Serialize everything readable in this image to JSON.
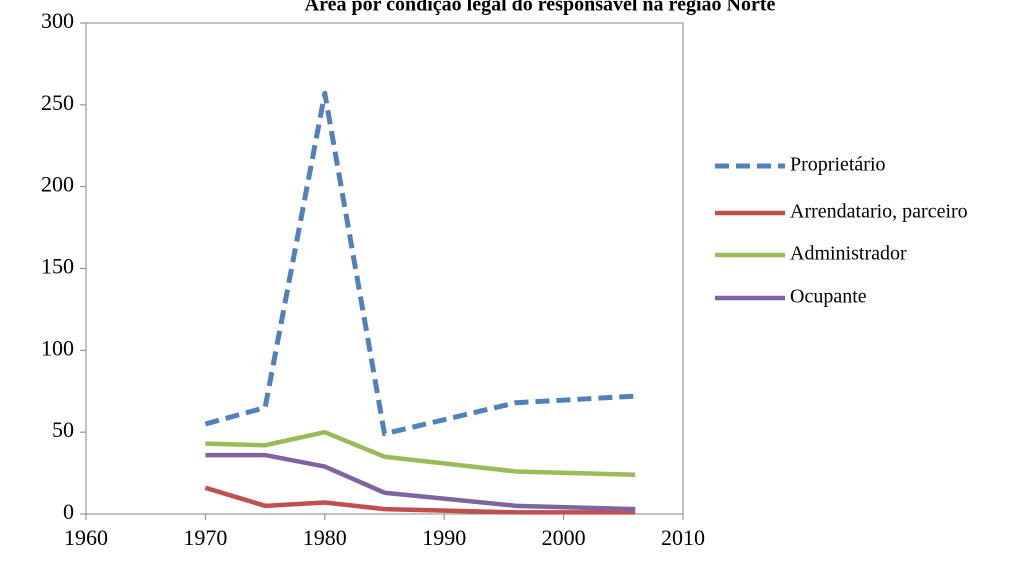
{
  "chart_data": {
    "type": "line",
    "title": "Área por condição legal do responsável na região Norte",
    "x": [
      1970,
      1975,
      1980,
      1985,
      1996,
      2006
    ],
    "series": [
      {
        "name": "Proprietário",
        "color": "#4f81bd",
        "dashed": true,
        "values": [
          55,
          65,
          257,
          49,
          68,
          72
        ]
      },
      {
        "name": "Arrendatario, parceiro",
        "color": "#c0504d",
        "dashed": false,
        "values": [
          16,
          5,
          7,
          3,
          1,
          1
        ]
      },
      {
        "name": "Administrador",
        "color": "#9bbb59",
        "dashed": false,
        "values": [
          43,
          42,
          50,
          35,
          26,
          24
        ]
      },
      {
        "name": "Ocupante",
        "color": "#8064a2",
        "dashed": false,
        "values": [
          36,
          36,
          29,
          13,
          5,
          3
        ]
      }
    ],
    "xlim": [
      1960,
      2010
    ],
    "xticks": [
      1960,
      1970,
      1980,
      1990,
      2000,
      2010
    ],
    "ylim": [
      0,
      300
    ],
    "yticks": [
      0,
      50,
      100,
      150,
      200,
      250,
      300
    ],
    "legend": "right"
  }
}
